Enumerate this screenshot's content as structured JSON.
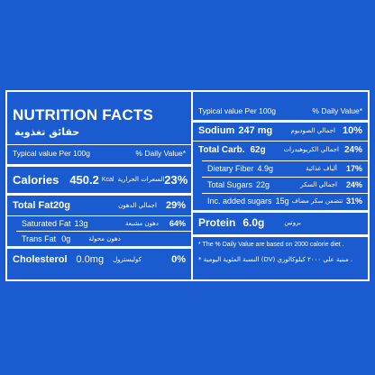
{
  "left": {
    "title": "NUTRITION FACTS",
    "title_ar": "حقائق تغذوية",
    "header_typical": "Typical value Per 100g",
    "header_dv": "% Daily Value*",
    "calories": {
      "label": "Calories",
      "value": "450.2",
      "unit": "Kcal",
      "ar": "السعرات الحرارية",
      "pct": "23%"
    },
    "total_fat": {
      "label": "Total Fat",
      "value": "20g",
      "ar": "اجمالي الدهون",
      "pct": "29%"
    },
    "saturated_fat": {
      "label": "Saturated Fat",
      "value": "13g",
      "ar": "دهون مشبعة",
      "pct": "64%"
    },
    "trans_fat": {
      "label": "Trans Fat",
      "value": "0g",
      "ar": "دهون محولة"
    },
    "cholesterol": {
      "label": "Cholesterol",
      "value": "0.0mg",
      "ar": "كوليسترول",
      "pct": "0%"
    }
  },
  "right": {
    "header_typical": "Typical value Per 100g",
    "header_dv": "% Daily Value*",
    "sodium": {
      "label": "Sodium",
      "value": "247 mg",
      "ar": "اجمالي الصوديوم",
      "pct": "10%"
    },
    "total_carb": {
      "label": "Total Carb.",
      "value": "62g",
      "ar": "اجمالي الكربوهيدرات",
      "pct": "24%"
    },
    "dietary_fiber": {
      "label": "Dietary Fiber",
      "value": "4.9g",
      "ar": "ألياف غذائية",
      "pct": "17%"
    },
    "total_sugars": {
      "label": "Total Sugars",
      "value": "22g",
      "ar": "اجمالي السكر",
      "pct": "24%"
    },
    "added_sugars": {
      "label": "Inc. added sugars",
      "value": "15g",
      "ar": "تتضمن سكر مضاف",
      "pct": "31%"
    },
    "protein": {
      "label": "Protein",
      "value": "6.0g",
      "ar": "بروتين"
    },
    "note_en": "* The % Daily Value are based on 2000 calorie diet .",
    "note_ar": "* النسبة المئوية اليومية (DV) مبنية على ٢٠٠٠ كيلوكالوري ."
  },
  "colors": {
    "background": "#1a5bd0",
    "text": "#ffffff"
  }
}
